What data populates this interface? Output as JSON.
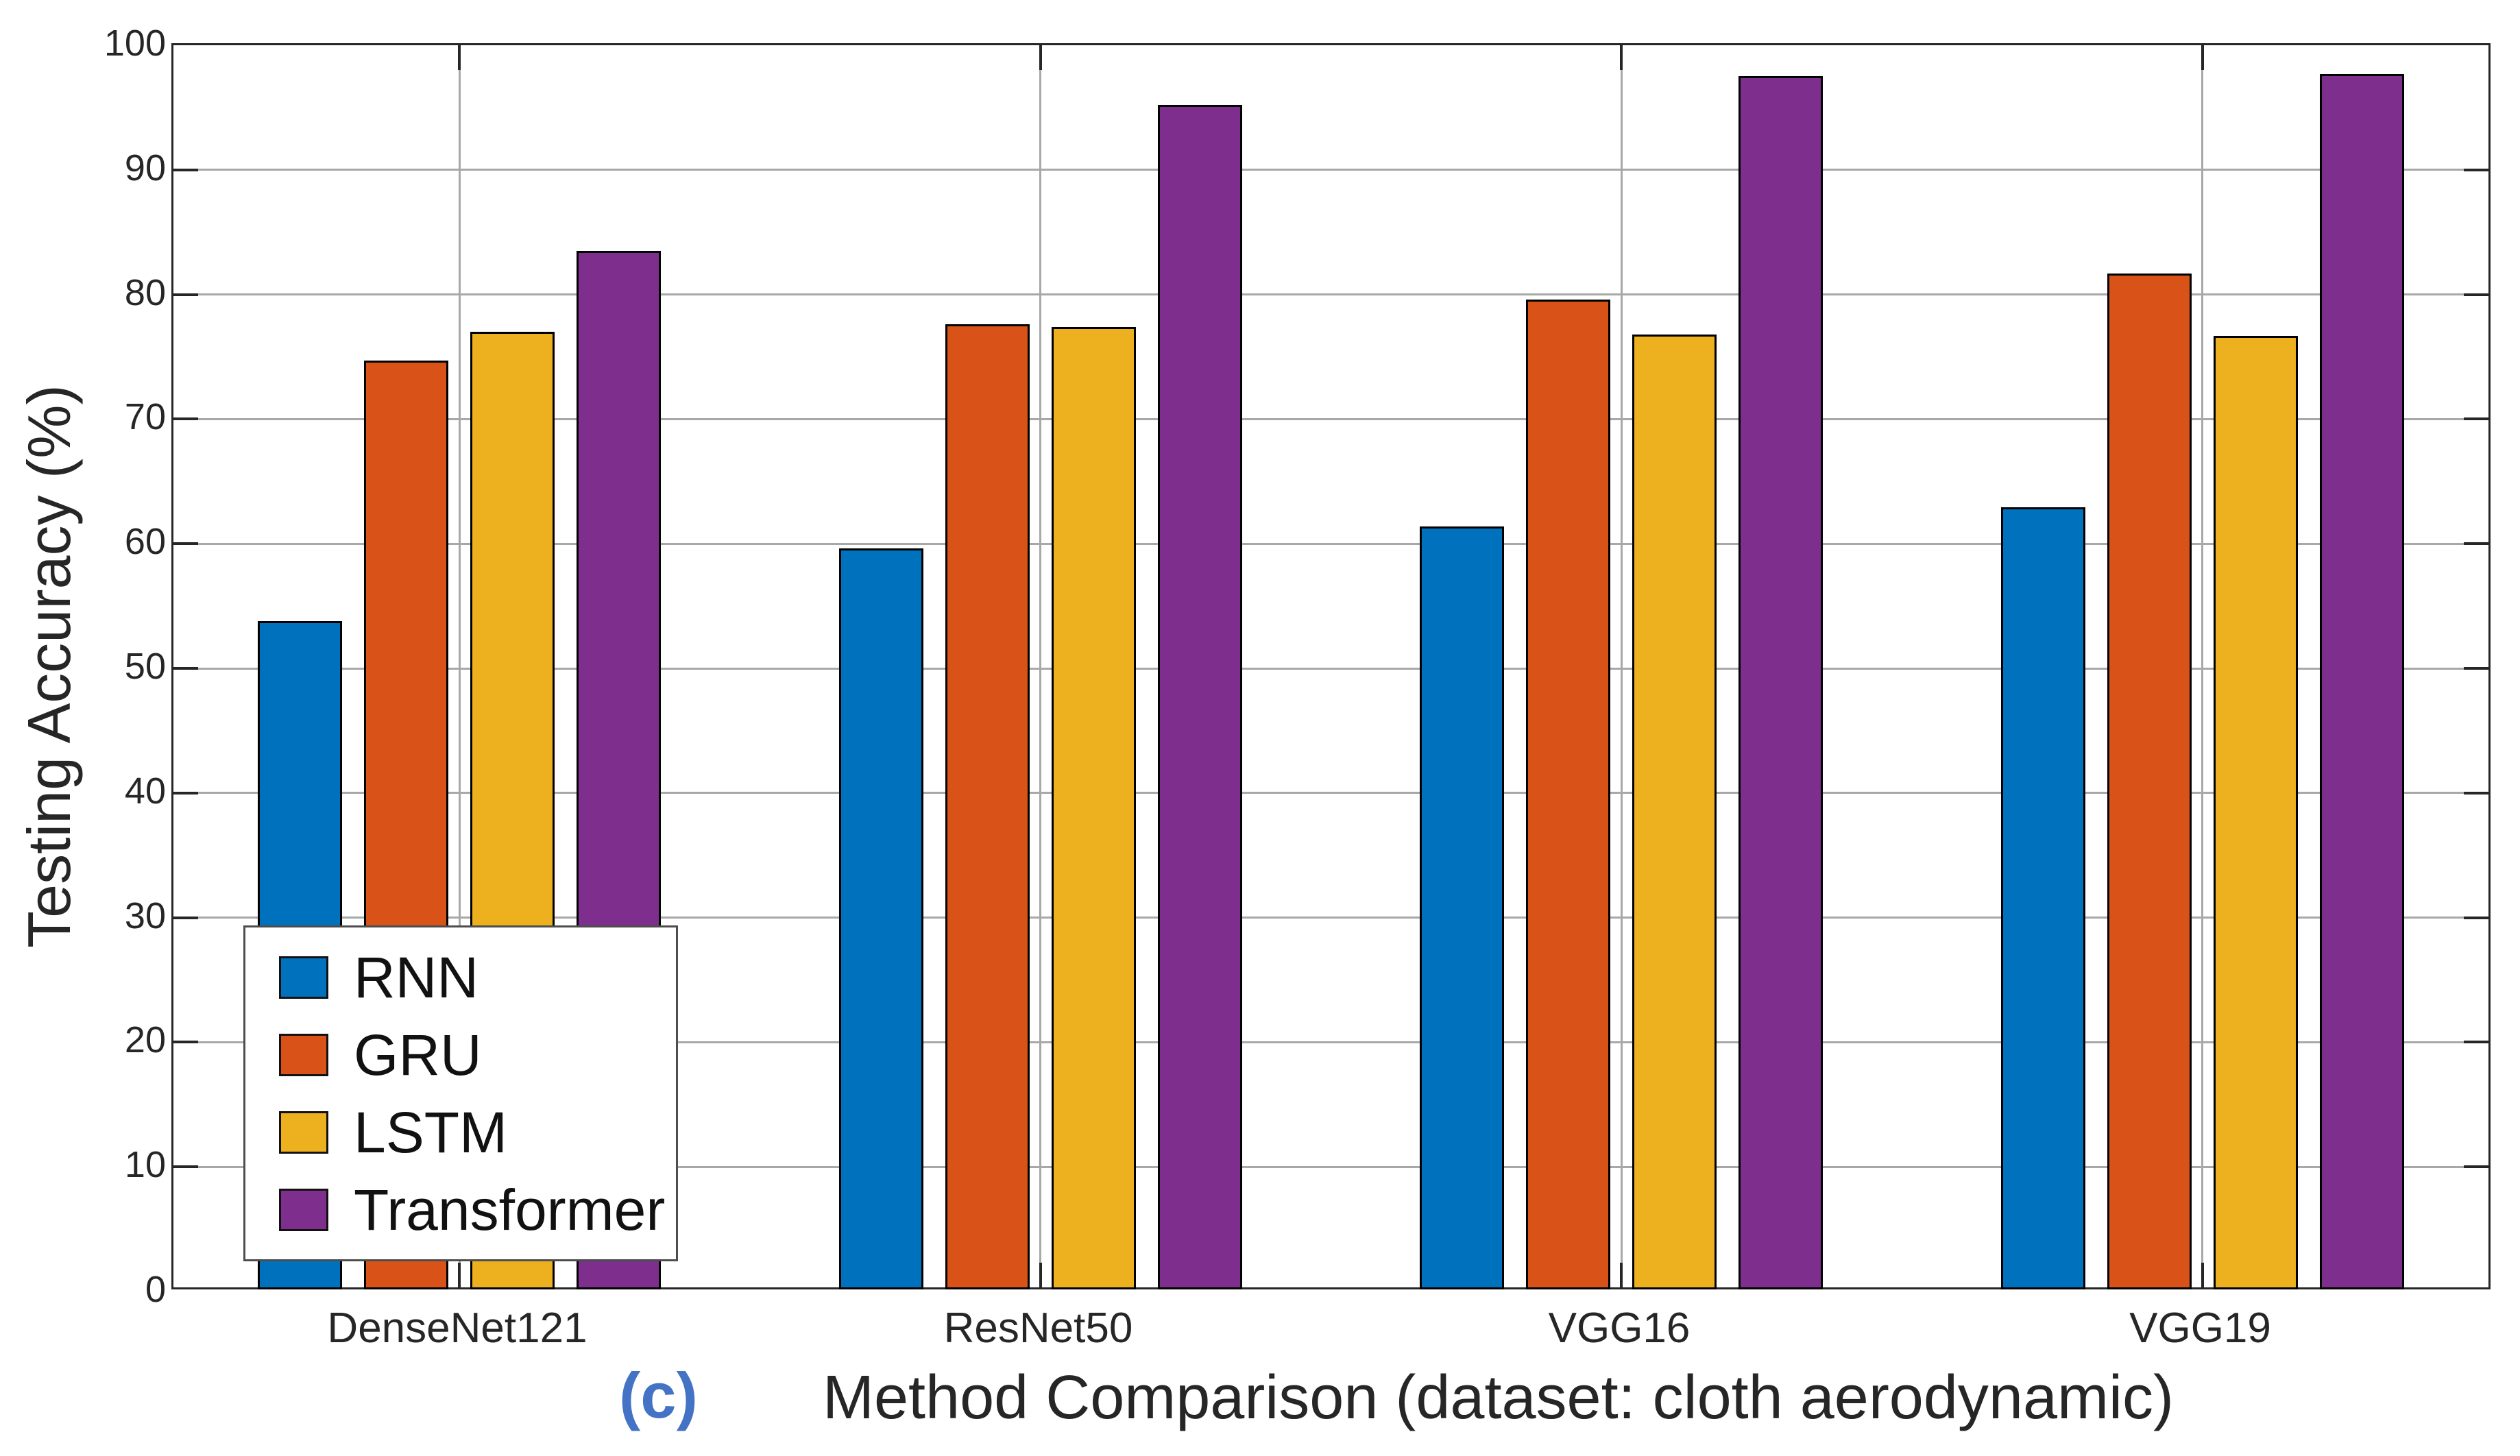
{
  "figure": {
    "caption_tag": "(c)",
    "caption_tag_color": "#4472C4"
  },
  "chart_data": {
    "type": "bar",
    "title": "",
    "xlabel": "Method Comparison (dataset: cloth aerodynamic)",
    "ylabel": "Testing Accuracy (%)",
    "categories": [
      "DenseNet121",
      "ResNet50",
      "VGG16",
      "VGG19"
    ],
    "series": [
      {
        "name": "RNN",
        "color": "#0072BD",
        "values": [
          53.8,
          59.6,
          61.4,
          62.9
        ]
      },
      {
        "name": "GRU",
        "color": "#D95319",
        "values": [
          74.7,
          77.6,
          79.6,
          81.7
        ]
      },
      {
        "name": "LSTM",
        "color": "#EDB120",
        "values": [
          77.0,
          77.4,
          76.8,
          76.7
        ]
      },
      {
        "name": "Transformer",
        "color": "#7E2F8E",
        "values": [
          83.5,
          95.2,
          97.5,
          97.7
        ]
      }
    ],
    "ylim": [
      0,
      100
    ],
    "yticks": [
      0,
      10,
      20,
      30,
      40,
      50,
      60,
      70,
      80,
      90,
      100
    ],
    "grid": true,
    "grid_color": "#a8a8a8",
    "axis_color": "#262626",
    "bar_edge_color": "#000000",
    "legend_position": "lower left inside plot",
    "legend_entries": [
      "RNN",
      "GRU",
      "LSTM",
      "Transformer"
    ]
  }
}
